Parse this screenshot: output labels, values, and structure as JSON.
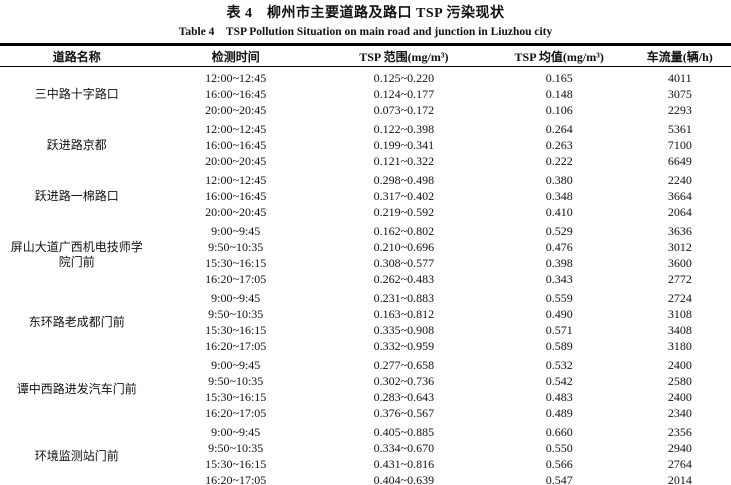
{
  "title": "表 4　柳州市主要道路及路口 TSP 污染现状",
  "subtitle": "Table 4　TSP Pollution Situation on main road and junction in Liuzhou city",
  "columns": [
    "道路名称",
    "检测时间",
    "TSP 范围(mg/m³)",
    "TSP 均值(mg/m³)",
    "车流量(辆/h)"
  ],
  "groups": [
    {
      "road": "三中路十字路口",
      "rows": [
        [
          "12:00~12:45",
          "0.125~0.220",
          "0.165",
          "4011"
        ],
        [
          "16:00~16:45",
          "0.124~0.177",
          "0.148",
          "3075"
        ],
        [
          "20:00~20:45",
          "0.073~0.172",
          "0.106",
          "2293"
        ]
      ]
    },
    {
      "road": "跃进路京都",
      "rows": [
        [
          "12:00~12:45",
          "0.122~0.398",
          "0.264",
          "5361"
        ],
        [
          "16:00~16:45",
          "0.199~0.341",
          "0.263",
          "7100"
        ],
        [
          "20:00~20:45",
          "0.121~0.322",
          "0.222",
          "6649"
        ]
      ]
    },
    {
      "road": "跃进路一棉路口",
      "rows": [
        [
          "12:00~12:45",
          "0.298~0.498",
          "0.380",
          "2240"
        ],
        [
          "16:00~16:45",
          "0.317~0.402",
          "0.348",
          "3664"
        ],
        [
          "20:00~20:45",
          "0.219~0.592",
          "0.410",
          "2064"
        ]
      ]
    },
    {
      "road": "屏山大道广西机电技师学院门前",
      "rows": [
        [
          "9:00~9:45",
          "0.162~0.802",
          "0.529",
          "3636"
        ],
        [
          "9:50~10:35",
          "0.210~0.696",
          "0.476",
          "3012"
        ],
        [
          "15:30~16:15",
          "0.308~0.577",
          "0.398",
          "3600"
        ],
        [
          "16:20~17:05",
          "0.262~0.483",
          "0.343",
          "2772"
        ]
      ]
    },
    {
      "road": "东环路老成都门前",
      "rows": [
        [
          "9:00~9:45",
          "0.231~0.883",
          "0.559",
          "2724"
        ],
        [
          "9:50~10:35",
          "0.163~0.812",
          "0.490",
          "3108"
        ],
        [
          "15:30~16:15",
          "0.335~0.908",
          "0.571",
          "3408"
        ],
        [
          "16:20~17:05",
          "0.332~0.959",
          "0.589",
          "3180"
        ]
      ]
    },
    {
      "road": "谭中西路进发汽车门前",
      "rows": [
        [
          "9:00~9:45",
          "0.277~0.658",
          "0.532",
          "2400"
        ],
        [
          "9:50~10:35",
          "0.302~0.736",
          "0.542",
          "2580"
        ],
        [
          "15:30~16:15",
          "0.283~0.643",
          "0.483",
          "2400"
        ],
        [
          "16:20~17:05",
          "0.376~0.567",
          "0.489",
          "2340"
        ]
      ]
    },
    {
      "road": "环境监测站门前",
      "rows": [
        [
          "9:00~9:45",
          "0.405~0.885",
          "0.660",
          "2356"
        ],
        [
          "9:50~10:35",
          "0.334~0.670",
          "0.550",
          "2940"
        ],
        [
          "15:30~16:15",
          "0.431~0.816",
          "0.566",
          "2764"
        ],
        [
          "16:20~17:05",
          "0.404~0.639",
          "0.547",
          "2014"
        ]
      ]
    }
  ],
  "chart_data": {
    "type": "table",
    "title": "表 4　柳州市主要道路及路口 TSP 污染现状",
    "subtitle": "Table 4　TSP Pollution Situation on main road and junction in Liuzhou city",
    "columns": [
      "道路名称",
      "检测时间",
      "TSP 范围(mg/m³)",
      "TSP 均值(mg/m³)",
      "车流量(辆/h)"
    ],
    "rows": [
      [
        "三中路十字路口",
        "12:00~12:45",
        "0.125~0.220",
        0.165,
        4011
      ],
      [
        "三中路十字路口",
        "16:00~16:45",
        "0.124~0.177",
        0.148,
        3075
      ],
      [
        "三中路十字路口",
        "20:00~20:45",
        "0.073~0.172",
        0.106,
        2293
      ],
      [
        "跃进路京都",
        "12:00~12:45",
        "0.122~0.398",
        0.264,
        5361
      ],
      [
        "跃进路京都",
        "16:00~16:45",
        "0.199~0.341",
        0.263,
        7100
      ],
      [
        "跃进路京都",
        "20:00~20:45",
        "0.121~0.322",
        0.222,
        6649
      ],
      [
        "跃进路一棉路口",
        "12:00~12:45",
        "0.298~0.498",
        0.38,
        2240
      ],
      [
        "跃进路一棉路口",
        "16:00~16:45",
        "0.317~0.402",
        0.348,
        3664
      ],
      [
        "跃进路一棉路口",
        "20:00~20:45",
        "0.219~0.592",
        0.41,
        2064
      ],
      [
        "屏山大道广西机电技师学院门前",
        "9:00~9:45",
        "0.162~0.802",
        0.529,
        3636
      ],
      [
        "屏山大道广西机电技师学院门前",
        "9:50~10:35",
        "0.210~0.696",
        0.476,
        3012
      ],
      [
        "屏山大道广西机电技师学院门前",
        "15:30~16:15",
        "0.308~0.577",
        0.398,
        3600
      ],
      [
        "屏山大道广西机电技师学院门前",
        "16:20~17:05",
        "0.262~0.483",
        0.343,
        2772
      ],
      [
        "东环路老成都门前",
        "9:00~9:45",
        "0.231~0.883",
        0.559,
        2724
      ],
      [
        "东环路老成都门前",
        "9:50~10:35",
        "0.163~0.812",
        0.49,
        3108
      ],
      [
        "东环路老成都门前",
        "15:30~16:15",
        "0.335~0.908",
        0.571,
        3408
      ],
      [
        "东环路老成都门前",
        "16:20~17:05",
        "0.332~0.959",
        0.589,
        3180
      ],
      [
        "谭中西路进发汽车门前",
        "9:00~9:45",
        "0.277~0.658",
        0.532,
        2400
      ],
      [
        "谭中西路进发汽车门前",
        "9:50~10:35",
        "0.302~0.736",
        0.542,
        2580
      ],
      [
        "谭中西路进发汽车门前",
        "15:30~16:15",
        "0.283~0.643",
        0.483,
        2400
      ],
      [
        "谭中西路进发汽车门前",
        "16:20~17:05",
        "0.376~0.567",
        0.489,
        2340
      ],
      [
        "环境监测站门前",
        "9:00~9:45",
        "0.405~0.885",
        0.66,
        2356
      ],
      [
        "环境监测站门前",
        "9:50~10:35",
        "0.334~0.670",
        0.55,
        2940
      ],
      [
        "环境监测站门前",
        "15:30~16:15",
        "0.431~0.816",
        0.566,
        2764
      ],
      [
        "环境监测站门前",
        "16:20~17:05",
        "0.404~0.639",
        0.547,
        2014
      ]
    ]
  }
}
